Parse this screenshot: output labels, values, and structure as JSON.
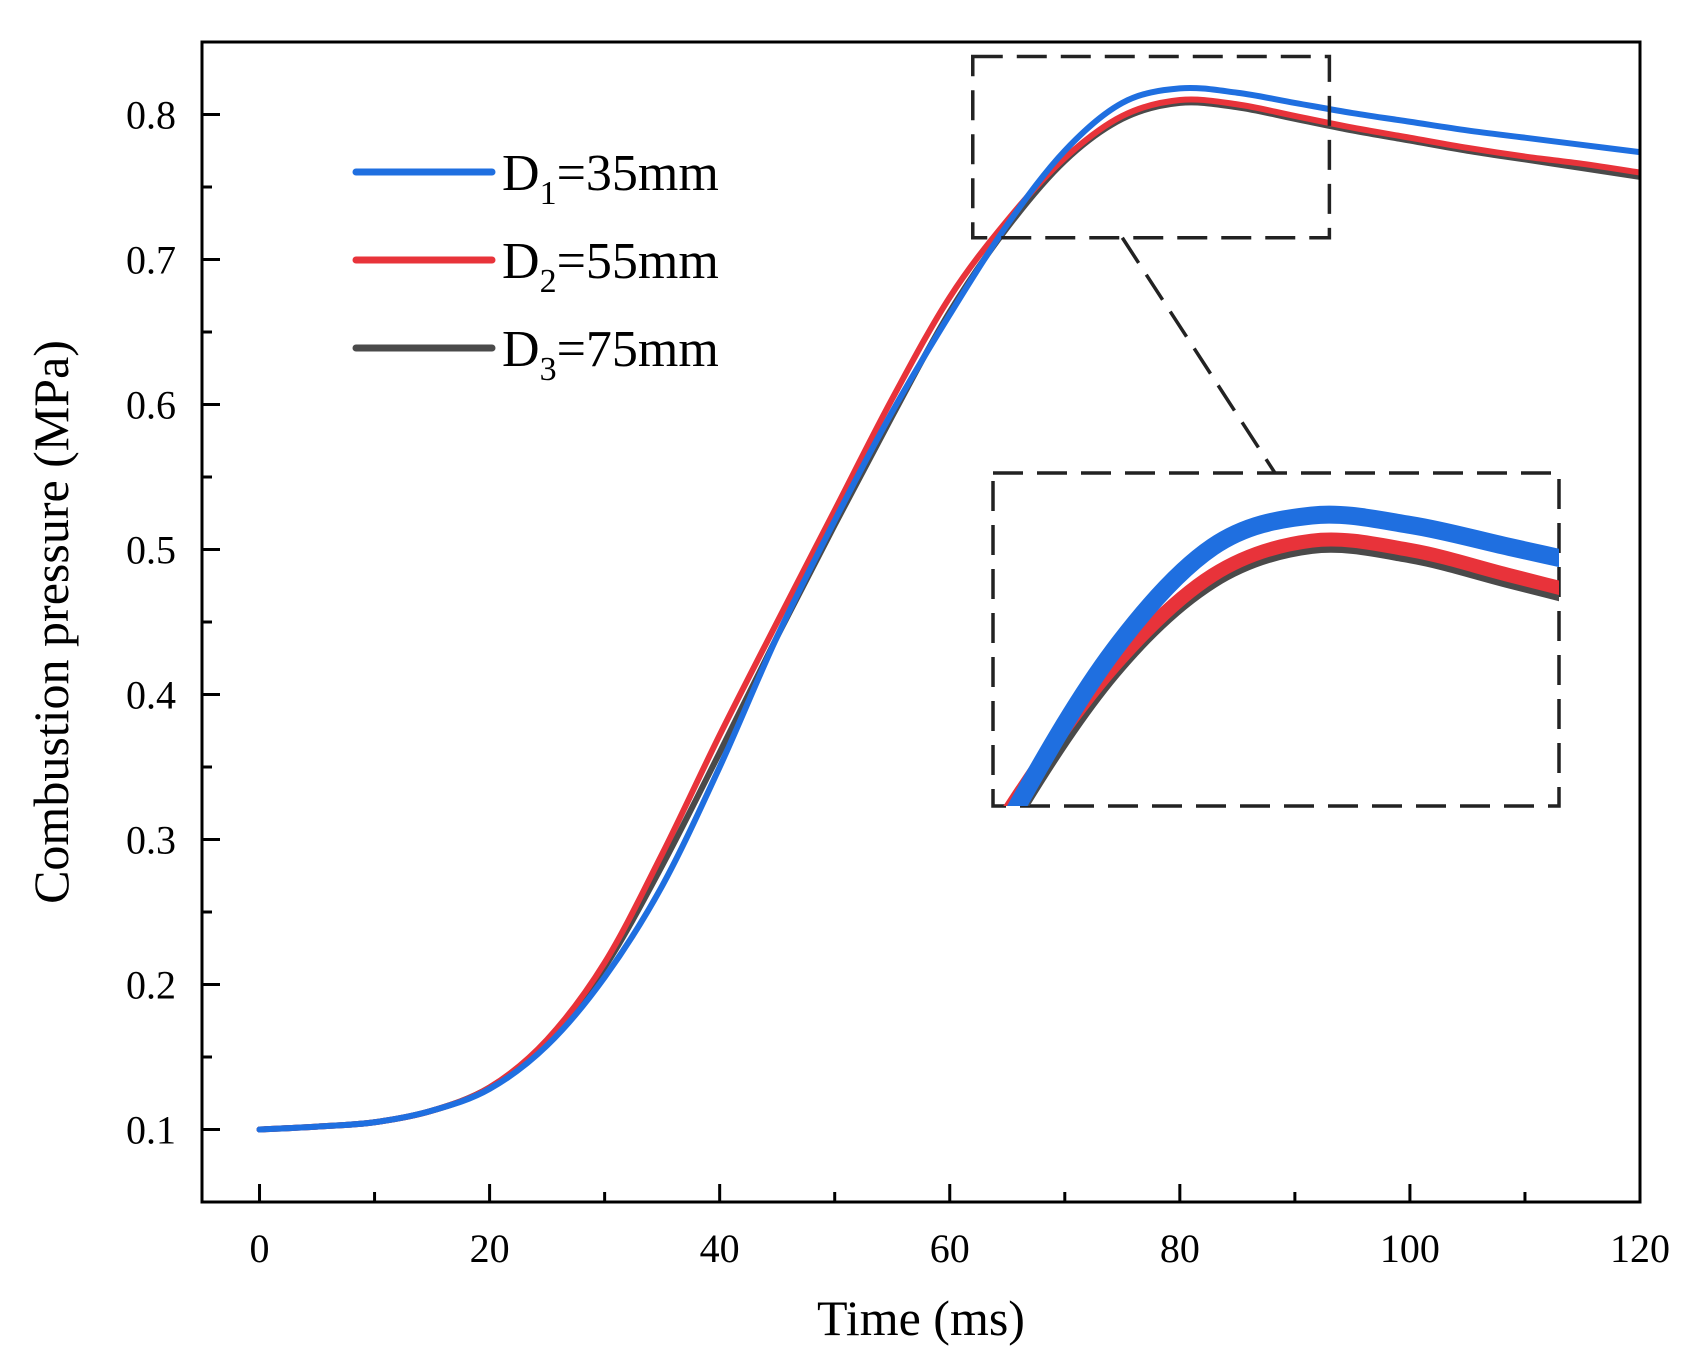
{
  "chart_data": {
    "type": "line",
    "title": "",
    "xlabel": "Time (ms)",
    "ylabel": "Combustion pressure (MPa)",
    "xlim": [
      -5,
      120
    ],
    "ylim": [
      0.05,
      0.85
    ],
    "xticks": [
      0,
      20,
      40,
      60,
      80,
      100,
      120
    ],
    "xtick_labels": [
      "0",
      "20",
      "40",
      "60",
      "80",
      "100",
      "120"
    ],
    "yticks": [
      0.1,
      0.2,
      0.3,
      0.4,
      0.5,
      0.6,
      0.7,
      0.8
    ],
    "ytick_labels": [
      "0.1",
      "0.2",
      "0.3",
      "0.4",
      "0.5",
      "0.6",
      "0.7",
      "0.8"
    ],
    "grid": false,
    "legend_position": "top-left",
    "x": [
      0,
      5,
      10,
      15,
      20,
      25,
      30,
      35,
      40,
      45,
      50,
      55,
      60,
      65,
      70,
      75,
      80,
      85,
      90,
      95,
      100,
      105,
      110,
      115,
      120
    ],
    "series": [
      {
        "name": "D1=35mm",
        "label_main": "D",
        "label_sub": "1",
        "label_rest": "=35mm",
        "color": "#1f6fe0",
        "values": [
          0.1,
          0.102,
          0.105,
          0.113,
          0.128,
          0.158,
          0.205,
          0.268,
          0.35,
          0.44,
          0.52,
          0.595,
          0.662,
          0.724,
          0.775,
          0.808,
          0.818,
          0.815,
          0.808,
          0.801,
          0.795,
          0.789,
          0.784,
          0.779,
          0.774
        ]
      },
      {
        "name": "D2=55mm",
        "label_main": "D",
        "label_sub": "2",
        "label_rest": "=55mm",
        "color": "#e8333a",
        "values": [
          0.1,
          0.102,
          0.105,
          0.113,
          0.129,
          0.162,
          0.215,
          0.29,
          0.372,
          0.45,
          0.527,
          0.604,
          0.674,
          0.727,
          0.77,
          0.799,
          0.81,
          0.807,
          0.799,
          0.791,
          0.784,
          0.777,
          0.771,
          0.766,
          0.76
        ]
      },
      {
        "name": "D3=75mm",
        "label_main": "D",
        "label_sub": "3",
        "label_rest": "=75mm",
        "color": "#4a4a4a",
        "values": [
          0.1,
          0.102,
          0.105,
          0.113,
          0.129,
          0.16,
          0.212,
          0.282,
          0.36,
          0.44,
          0.517,
          0.592,
          0.664,
          0.722,
          0.768,
          0.797,
          0.808,
          0.805,
          0.797,
          0.789,
          0.782,
          0.775,
          0.769,
          0.763,
          0.757
        ]
      }
    ],
    "zoom_region": {
      "x_range": [
        62,
        93
      ],
      "y_range": [
        0.715,
        0.84
      ]
    }
  }
}
